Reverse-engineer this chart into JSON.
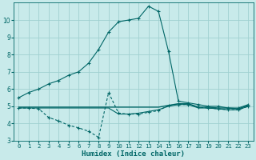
{
  "xlabel": "Humidex (Indice chaleur)",
  "bg_color": "#c8eaea",
  "grid_color": "#a0d0d0",
  "line_color": "#006666",
  "xlim": [
    -0.5,
    23.5
  ],
  "ylim": [
    3,
    11
  ],
  "yticks": [
    3,
    4,
    5,
    6,
    7,
    8,
    9,
    10
  ],
  "xticks": [
    0,
    1,
    2,
    3,
    4,
    5,
    6,
    7,
    8,
    9,
    10,
    11,
    12,
    13,
    14,
    15,
    16,
    17,
    18,
    19,
    20,
    21,
    22,
    23
  ],
  "series": {
    "line1": {
      "x": [
        0,
        1,
        2,
        3,
        4,
        5,
        6,
        7,
        8,
        9,
        10,
        11,
        12,
        13,
        14,
        15,
        16,
        17,
        18,
        19,
        20,
        21,
        22,
        23
      ],
      "y": [
        5.5,
        5.8,
        6.0,
        6.3,
        6.5,
        6.8,
        7.0,
        7.5,
        8.3,
        9.3,
        9.9,
        10.0,
        10.1,
        10.8,
        10.5,
        8.2,
        5.3,
        5.2,
        5.1,
        5.0,
        5.0,
        4.9,
        4.9,
        5.1
      ]
    },
    "line2": {
      "x": [
        0,
        1,
        2,
        3,
        4,
        5,
        6,
        7,
        8,
        9,
        10,
        11,
        12,
        13,
        14,
        15,
        16,
        17,
        18,
        19,
        20,
        21,
        22,
        23
      ],
      "y": [
        4.9,
        4.9,
        4.85,
        4.35,
        4.15,
        3.9,
        3.75,
        3.55,
        3.2,
        5.8,
        4.6,
        4.55,
        4.55,
        4.65,
        4.75,
        5.05,
        5.1,
        5.1,
        4.95,
        4.9,
        4.85,
        4.8,
        4.8,
        5.0
      ]
    },
    "line3": {
      "x": [
        0,
        1,
        2,
        3,
        4,
        5,
        6,
        7,
        8,
        9,
        10,
        11,
        12,
        13,
        14,
        15,
        16,
        17,
        18,
        19,
        20,
        21,
        22,
        23
      ],
      "y": [
        4.95,
        4.95,
        4.95,
        4.95,
        4.95,
        4.95,
        4.95,
        4.95,
        4.95,
        4.95,
        4.95,
        4.95,
        4.95,
        4.95,
        4.95,
        5.05,
        5.15,
        5.15,
        4.95,
        4.95,
        4.9,
        4.9,
        4.85,
        5.05
      ]
    },
    "line4": {
      "x": [
        0,
        1,
        2,
        3,
        4,
        5,
        6,
        7,
        8,
        9,
        10,
        11,
        12,
        13,
        14,
        15,
        16,
        17,
        18,
        19,
        20,
        21,
        22,
        23
      ],
      "y": [
        4.9,
        4.9,
        4.9,
        4.9,
        4.9,
        4.9,
        4.9,
        4.9,
        4.9,
        4.9,
        4.55,
        4.55,
        4.6,
        4.7,
        4.8,
        5.0,
        5.1,
        5.1,
        4.9,
        4.9,
        4.85,
        4.8,
        4.8,
        5.0
      ]
    }
  }
}
